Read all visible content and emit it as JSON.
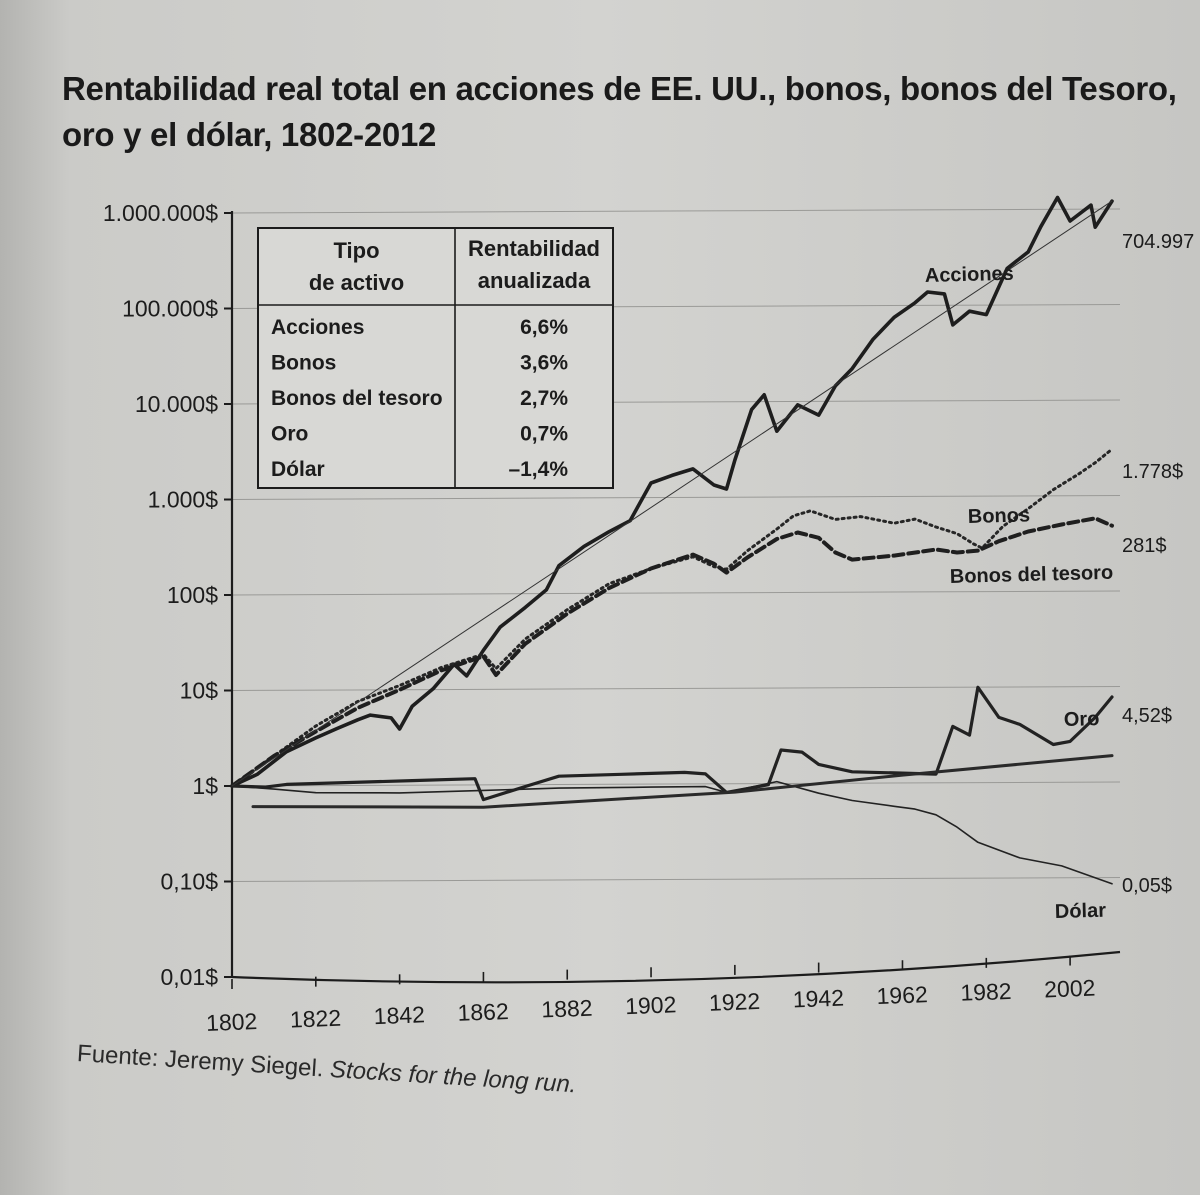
{
  "title": "Rentabilidad real total en acciones de EE. UU., bonos, bonos del Tesoro, oro y el dólar, 1802-2012",
  "source": {
    "prefix": "Fuente: Jeremy Siegel. ",
    "work": "Stocks for the long run."
  },
  "chart_data": {
    "type": "line",
    "y_scale": "log",
    "ylim": [
      0.01,
      1000000
    ],
    "xlim": [
      1802,
      2012
    ],
    "grid": "horizontal",
    "y_ticks": [
      {
        "value": 1000000,
        "label": "1.000.000$"
      },
      {
        "value": 100000,
        "label": "100.000$"
      },
      {
        "value": 10000,
        "label": "10.000$"
      },
      {
        "value": 1000,
        "label": "1.000$"
      },
      {
        "value": 100,
        "label": "100$"
      },
      {
        "value": 10,
        "label": "10$"
      },
      {
        "value": 1,
        "label": "1$"
      },
      {
        "value": 0.1,
        "label": "0,10$"
      },
      {
        "value": 0.01,
        "label": "0,01$"
      }
    ],
    "x_ticks": [
      "1802",
      "1822",
      "1842",
      "1862",
      "1882",
      "1902",
      "1922",
      "1942",
      "1962",
      "1982",
      "2002"
    ],
    "series": [
      {
        "name": "Acciones",
        "end_label": "704.997",
        "style": "solid-thick",
        "color": "#1e1e1e",
        "points": [
          [
            1802,
            1
          ],
          [
            1808,
            1.3
          ],
          [
            1815,
            2.2
          ],
          [
            1822,
            3
          ],
          [
            1827,
            3.7
          ],
          [
            1832,
            4.5
          ],
          [
            1835,
            5
          ],
          [
            1840,
            4.6
          ],
          [
            1842,
            3.5
          ],
          [
            1845,
            6
          ],
          [
            1850,
            9
          ],
          [
            1855,
            16
          ],
          [
            1858,
            12
          ],
          [
            1862,
            22
          ],
          [
            1866,
            38
          ],
          [
            1872,
            60
          ],
          [
            1877,
            90
          ],
          [
            1880,
            160
          ],
          [
            1886,
            250
          ],
          [
            1892,
            350
          ],
          [
            1897,
            450
          ],
          [
            1902,
            1100
          ],
          [
            1907,
            1300
          ],
          [
            1912,
            1500
          ],
          [
            1917,
            1000
          ],
          [
            1920,
            900
          ],
          [
            1922,
            1800
          ],
          [
            1926,
            6000
          ],
          [
            1929,
            8500
          ],
          [
            1932,
            3500
          ],
          [
            1937,
            6500
          ],
          [
            1942,
            5000
          ],
          [
            1946,
            10000
          ],
          [
            1950,
            15000
          ],
          [
            1955,
            30000
          ],
          [
            1960,
            50000
          ],
          [
            1965,
            70000
          ],
          [
            1968,
            90000
          ],
          [
            1972,
            85000
          ],
          [
            1974,
            40000
          ],
          [
            1978,
            55000
          ],
          [
            1982,
            50000
          ],
          [
            1987,
            150000
          ],
          [
            1992,
            220000
          ],
          [
            1995,
            400000
          ],
          [
            1999,
            800000
          ],
          [
            2002,
            450000
          ],
          [
            2007,
            650000
          ],
          [
            2008,
            380000
          ],
          [
            2012,
            704997
          ]
        ]
      },
      {
        "name": "Bonos",
        "end_label": "1.778$",
        "style": "dotted",
        "color": "#262626",
        "points": [
          [
            1802,
            1
          ],
          [
            1812,
            2
          ],
          [
            1822,
            4
          ],
          [
            1832,
            7
          ],
          [
            1842,
            10
          ],
          [
            1852,
            15
          ],
          [
            1862,
            20
          ],
          [
            1865,
            14
          ],
          [
            1872,
            28
          ],
          [
            1882,
            55
          ],
          [
            1892,
            100
          ],
          [
            1902,
            140
          ],
          [
            1912,
            180
          ],
          [
            1917,
            140
          ],
          [
            1920,
            130
          ],
          [
            1925,
            200
          ],
          [
            1932,
            330
          ],
          [
            1936,
            450
          ],
          [
            1940,
            500
          ],
          [
            1946,
            400
          ],
          [
            1952,
            420
          ],
          [
            1960,
            350
          ],
          [
            1965,
            380
          ],
          [
            1970,
            310
          ],
          [
            1975,
            260
          ],
          [
            1979,
            200
          ],
          [
            1981,
            180
          ],
          [
            1986,
            300
          ],
          [
            1992,
            450
          ],
          [
            1998,
            700
          ],
          [
            2004,
            1000
          ],
          [
            2008,
            1300
          ],
          [
            2012,
            1778
          ]
        ]
      },
      {
        "name": "Bonos del tesoro",
        "end_label": "281$",
        "style": "dashed",
        "color": "#1f1f1f",
        "points": [
          [
            1802,
            1
          ],
          [
            1812,
            2
          ],
          [
            1822,
            3.5
          ],
          [
            1832,
            6
          ],
          [
            1842,
            9
          ],
          [
            1852,
            14
          ],
          [
            1862,
            19
          ],
          [
            1865,
            12
          ],
          [
            1872,
            25
          ],
          [
            1882,
            50
          ],
          [
            1892,
            90
          ],
          [
            1902,
            140
          ],
          [
            1912,
            190
          ],
          [
            1917,
            150
          ],
          [
            1920,
            120
          ],
          [
            1925,
            170
          ],
          [
            1932,
            260
          ],
          [
            1937,
            300
          ],
          [
            1942,
            260
          ],
          [
            1946,
            180
          ],
          [
            1950,
            150
          ],
          [
            1960,
            160
          ],
          [
            1970,
            180
          ],
          [
            1975,
            165
          ],
          [
            1980,
            170
          ],
          [
            1985,
            210
          ],
          [
            1992,
            260
          ],
          [
            2000,
            300
          ],
          [
            2008,
            340
          ],
          [
            2012,
            281
          ]
        ]
      },
      {
        "name": "Oro",
        "end_label": "4,52$",
        "style": "solid-medium",
        "color": "#222222",
        "points": [
          [
            1802,
            1
          ],
          [
            1810,
            0.95
          ],
          [
            1815,
            1
          ],
          [
            1830,
            1
          ],
          [
            1845,
            1
          ],
          [
            1860,
            1
          ],
          [
            1862,
            0.6
          ],
          [
            1872,
            0.8
          ],
          [
            1880,
            1
          ],
          [
            1895,
            1
          ],
          [
            1910,
            1
          ],
          [
            1915,
            0.95
          ],
          [
            1920,
            0.6
          ],
          [
            1930,
            0.7
          ],
          [
            1933,
            1.6
          ],
          [
            1938,
            1.5
          ],
          [
            1942,
            1.1
          ],
          [
            1950,
            0.9
          ],
          [
            1960,
            0.85
          ],
          [
            1970,
            0.8
          ],
          [
            1974,
            2.5
          ],
          [
            1978,
            2
          ],
          [
            1980,
            6.3
          ],
          [
            1985,
            3
          ],
          [
            1990,
            2.5
          ],
          [
            1998,
            1.5
          ],
          [
            2002,
            1.6
          ],
          [
            2008,
            2.8
          ],
          [
            2012,
            4.52
          ]
        ]
      },
      {
        "name": "Dólar",
        "end_label": "0,05$",
        "style": "solid-thin",
        "color": "#222222",
        "points": [
          [
            1802,
            1
          ],
          [
            1812,
            0.9
          ],
          [
            1822,
            0.8
          ],
          [
            1842,
            0.75
          ],
          [
            1862,
            0.75
          ],
          [
            1880,
            0.75
          ],
          [
            1902,
            0.72
          ],
          [
            1915,
            0.7
          ],
          [
            1920,
            0.6
          ],
          [
            1932,
            0.75
          ],
          [
            1942,
            0.55
          ],
          [
            1950,
            0.45
          ],
          [
            1960,
            0.38
          ],
          [
            1965,
            0.35
          ],
          [
            1970,
            0.3
          ],
          [
            1975,
            0.22
          ],
          [
            1980,
            0.15
          ],
          [
            1990,
            0.1
          ],
          [
            2000,
            0.08
          ],
          [
            2012,
            0.05
          ]
        ]
      },
      {
        "name": "Tendencia acciones",
        "style": "solid-hairline",
        "color": "#333333",
        "points": [
          [
            1802,
            1
          ],
          [
            2012,
            704997
          ]
        ]
      },
      {
        "name": "Tendencia oro",
        "style": "solid-heavy",
        "color": "#2a2a2a",
        "points": [
          [
            1807,
            0.6
          ],
          [
            1862,
            0.5
          ],
          [
            1922,
            0.6
          ],
          [
            1962,
            0.8
          ],
          [
            2012,
            1.1
          ]
        ]
      }
    ],
    "series_labels": [
      {
        "text": "Acciones",
        "series": "Acciones"
      },
      {
        "text": "Bonos",
        "series": "Bonos"
      },
      {
        "text": "Bonos del tesoro",
        "series": "Bonos del tesoro"
      },
      {
        "text": "Oro",
        "series": "Oro"
      },
      {
        "text": "Dólar",
        "series": "Dólar"
      }
    ],
    "table": {
      "headers": [
        "Tipo de activo",
        "Rentabilidad anualizada"
      ],
      "header_lines": [
        [
          "Tipo",
          "de activo"
        ],
        [
          "Rentabilidad",
          "anualizada"
        ]
      ],
      "rows": [
        [
          "Acciones",
          "6,6%"
        ],
        [
          "Bonos",
          "3,6%"
        ],
        [
          "Bonos del tesoro",
          "2,7%"
        ],
        [
          "Oro",
          "0,7%"
        ],
        [
          "Dólar",
          "–1,4%"
        ]
      ]
    }
  }
}
